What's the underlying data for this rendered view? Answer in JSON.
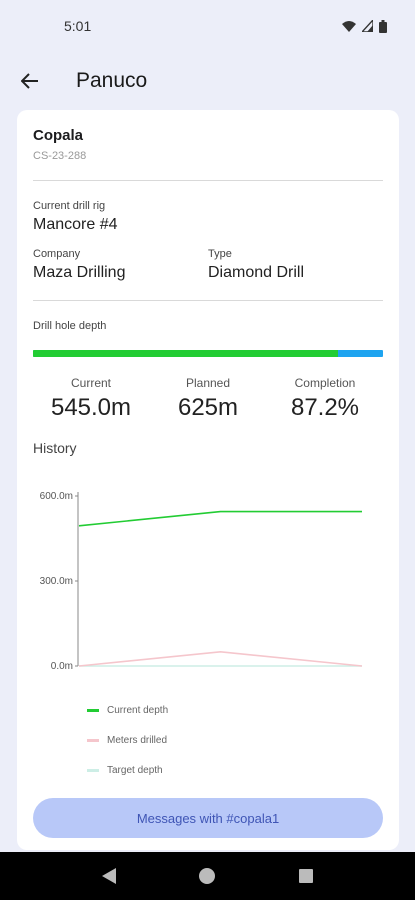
{
  "status_bar": {
    "time": "5:01",
    "icons": [
      "wifi-icon",
      "signal-icon",
      "battery-icon"
    ]
  },
  "app_bar": {
    "title": "Panuco",
    "back_icon": "arrow-back-icon"
  },
  "hole": {
    "name": "Copala",
    "id": "CS-23-288"
  },
  "rig": {
    "label": "Current drill rig",
    "value": "Mancore #4"
  },
  "company": {
    "label": "Company",
    "value": "Maza Drilling"
  },
  "type": {
    "label": "Type",
    "value": "Diamond Drill"
  },
  "depth": {
    "label": "Drill hole depth",
    "progress_fraction": 0.872,
    "colors": {
      "fill": "#22cc33",
      "remaining": "#1ea4f0"
    }
  },
  "stats": [
    {
      "label": "Current",
      "value": "545.0m"
    },
    {
      "label": "Planned",
      "value": "625m"
    },
    {
      "label": "Completion",
      "value": "87.2%"
    }
  ],
  "history": {
    "title": "History"
  },
  "chart_data": {
    "type": "line",
    "title": "",
    "xlabel": "",
    "ylabel": "",
    "ylim": [
      0,
      600
    ],
    "y_ticks": [
      "600.0m",
      "300.0m",
      "0.0m"
    ],
    "x": [
      0,
      1,
      2
    ],
    "grid": false,
    "legend_position": "bottom",
    "series": [
      {
        "name": "Current depth",
        "color": "#22cc33",
        "values": [
          495,
          545,
          545
        ]
      },
      {
        "name": "Meters drilled",
        "color": "#f5c6cc",
        "values": [
          0,
          50,
          0
        ]
      },
      {
        "name": "Target depth",
        "color": "#cdeee6",
        "values": [
          0,
          0,
          0
        ]
      }
    ]
  },
  "messages_button": {
    "label": "Messages with #copala1"
  },
  "nav": {
    "icons": [
      "nav-back-icon",
      "nav-home-icon",
      "nav-recents-icon"
    ]
  }
}
